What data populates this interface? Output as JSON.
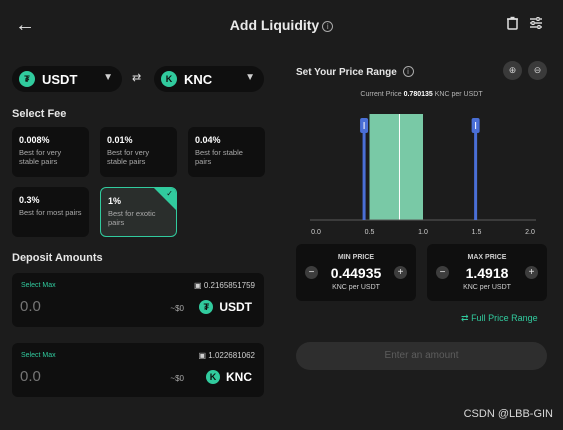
{
  "header": {
    "title": "Add Liquidity",
    "info_icon": "info-icon",
    "back_icon": "arrow-left-icon",
    "trash_icon": "trash-icon",
    "settings_icon": "sliders-icon"
  },
  "tokens": {
    "a": {
      "symbol": "USDT",
      "icon": "usdt-icon"
    },
    "b": {
      "symbol": "KNC",
      "icon": "knc-icon"
    },
    "swap_icon": "swap-arrows-icon"
  },
  "fees": {
    "label": "Select Fee",
    "options": [
      {
        "pct": "0.008%",
        "desc": "Best for very stable pairs",
        "selected": false
      },
      {
        "pct": "0.01%",
        "desc": "Best for very stable pairs",
        "selected": false
      },
      {
        "pct": "0.04%",
        "desc": "Best for stable pairs",
        "selected": false
      },
      {
        "pct": "0.3%",
        "desc": "Best for most pairs",
        "selected": false
      },
      {
        "pct": "1%",
        "desc": "Best for exotic pairs",
        "selected": true
      }
    ]
  },
  "deposit": {
    "label": "Deposit Amounts",
    "select_max": "Select Max",
    "rows": [
      {
        "balance": "0.2165851759",
        "amount_placeholder": "0.0",
        "usd": "~$0",
        "symbol": "USDT"
      },
      {
        "balance": "1.022681062",
        "amount_placeholder": "0.0",
        "usd": "~$0",
        "symbol": "KNC"
      }
    ]
  },
  "range": {
    "title": "Set Your Price Range",
    "current_price_label": "Current Price",
    "current_price_value": "0.780135",
    "current_price_unit": "KNC per USDT",
    "min": {
      "label": "MIN PRICE",
      "value": "0.44935",
      "unit": "KNC per USDT"
    },
    "max": {
      "label": "MAX PRICE",
      "value": "1.4918",
      "unit": "KNC per USDT"
    },
    "full_range": "Full Price Range",
    "enter_amount": "Enter an amount"
  },
  "chart_data": {
    "type": "area",
    "x_ticks": [
      "0.0",
      "0.5",
      "1.0",
      "1.5",
      "2.0"
    ],
    "xlim": [
      0.0,
      2.0
    ],
    "liquidity_range": [
      0.5,
      1.0
    ],
    "current_price": 0.780135,
    "min_price": 0.44935,
    "max_price": 1.4918,
    "colors": {
      "band": "#79c9a6",
      "handle": "#4a6fd6",
      "current": "#ffffff",
      "axis": "#5a5a5a"
    }
  },
  "watermark": "CSDN @LBB-GIN",
  "colors": {
    "accent": "#31cb9e",
    "bg": "#1c1c1c",
    "card": "#0f0f0f"
  }
}
